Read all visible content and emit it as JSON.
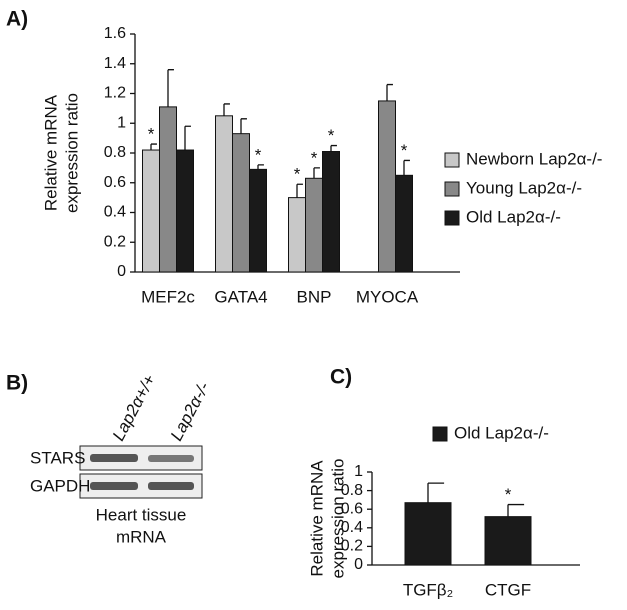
{
  "chart_data": [
    {
      "type": "bar",
      "label": "A)",
      "ylabel": [
        "Relative mRNA",
        "expression ratio"
      ],
      "categories": [
        "MEF2c",
        "GATA4",
        "BNP",
        "MYOCA"
      ],
      "series": [
        {
          "name": "Newborn Lap2α-/-",
          "color": "#c8c8c8",
          "values": [
            0.82,
            1.05,
            0.5,
            null
          ],
          "errors": [
            0.04,
            0.08,
            0.09,
            null
          ],
          "significance": [
            "*",
            null,
            "*",
            null
          ]
        },
        {
          "name": "Young Lap2α-/-",
          "color": "#888888",
          "values": [
            1.11,
            0.93,
            0.63,
            1.15
          ],
          "errors": [
            0.25,
            0.1,
            0.07,
            0.11
          ],
          "significance": [
            null,
            null,
            "*",
            null
          ]
        },
        {
          "name": "Old Lap2α-/-",
          "color": "#1a1a1a",
          "values": [
            0.82,
            0.69,
            0.81,
            0.65
          ],
          "errors": [
            0.16,
            0.03,
            0.04,
            0.1
          ],
          "significance": [
            null,
            "*",
            "*",
            "*"
          ]
        }
      ],
      "ylim": [
        0,
        1.6
      ],
      "yticks": [
        0,
        0.2,
        0.4,
        0.6,
        0.8,
        1,
        1.2,
        1.4,
        1.6
      ],
      "legend": "right"
    },
    {
      "type": "bar",
      "label": "C)",
      "ylabel": [
        "Relative mRNA",
        "expression ratio"
      ],
      "categories": [
        "TGFβ₂",
        "CTGF"
      ],
      "series": [
        {
          "name": "Old Lap2α-/-",
          "color": "#1a1a1a",
          "values": [
            0.67,
            0.52
          ],
          "errors": [
            0.21,
            0.13
          ],
          "significance": [
            null,
            "*"
          ]
        }
      ],
      "ylim": [
        0,
        1
      ],
      "yticks": [
        0,
        0.2,
        0.4,
        0.6,
        0.8,
        1
      ],
      "legend": "top"
    }
  ],
  "blot": {
    "label": "B)",
    "columns": [
      "Lap2α+/+",
      "Lap2α-/-"
    ],
    "rows": [
      "STARS",
      "GAPDH"
    ],
    "caption": [
      "Heart tissue",
      "mRNA"
    ]
  }
}
